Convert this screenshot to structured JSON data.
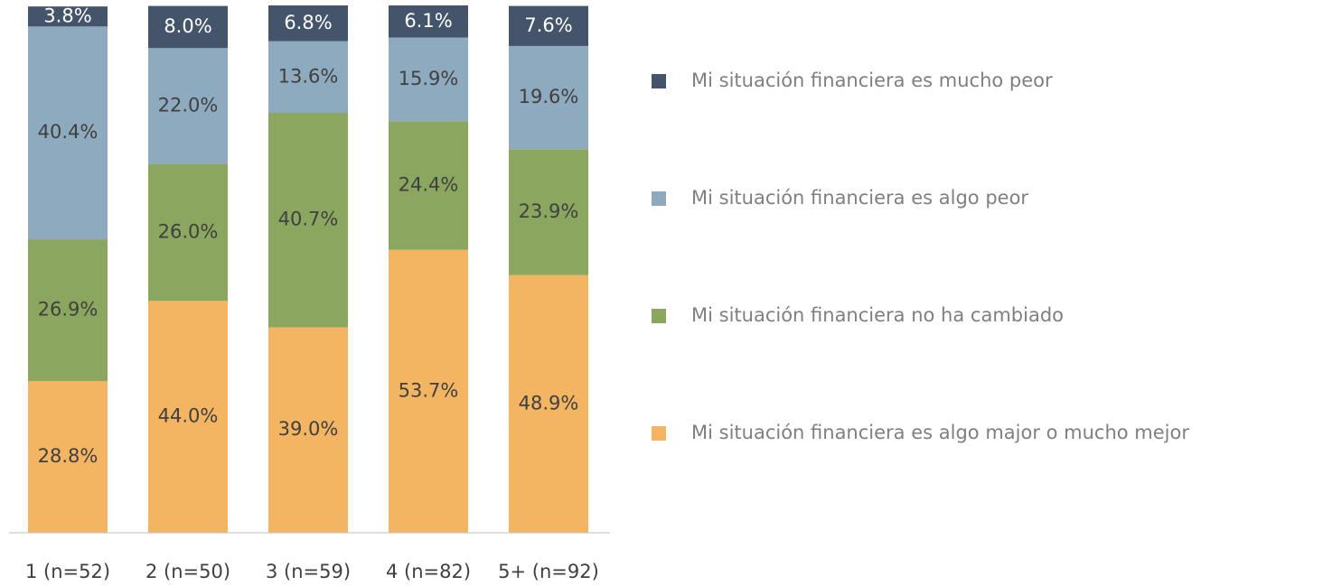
{
  "chart_data": {
    "type": "stacked_bar",
    "categories": [
      "1 (n=52)",
      "2 (n=50)",
      "3 (n=59)",
      "4 (n=82)",
      "5+ (n=92)"
    ],
    "series": [
      {
        "name": "Mi situación financiera es algo major o mucho mejor",
        "color": "#f4b563",
        "values": [
          28.8,
          44.0,
          39.0,
          53.7,
          48.9
        ],
        "value_labels": [
          "28.8%",
          "44.0%",
          "39.0%",
          "53.7%",
          "48.9%"
        ]
      },
      {
        "name": "Mi situación financiera no ha cambiado",
        "color": "#8ba65e",
        "values": [
          26.9,
          26.0,
          40.7,
          24.4,
          23.9
        ],
        "value_labels": [
          "26.9%",
          "26.0%",
          "40.7%",
          "24.4%",
          "23.9%"
        ]
      },
      {
        "name": "Mi situación financiera es algo peor",
        "color": "#8eaabe",
        "values": [
          40.4,
          22.0,
          13.6,
          15.9,
          19.6
        ],
        "value_labels": [
          "40.4%",
          "22.0%",
          "13.6%",
          "15.9%",
          "19.6%"
        ]
      },
      {
        "name": "Mi situación financiera es mucho peor",
        "color": "#44546a",
        "values": [
          3.8,
          8.0,
          6.8,
          6.1,
          7.6
        ],
        "value_labels": [
          "3.8%",
          "8.0%",
          "6.8%",
          "6.1%",
          "7.6%"
        ]
      }
    ]
  }
}
